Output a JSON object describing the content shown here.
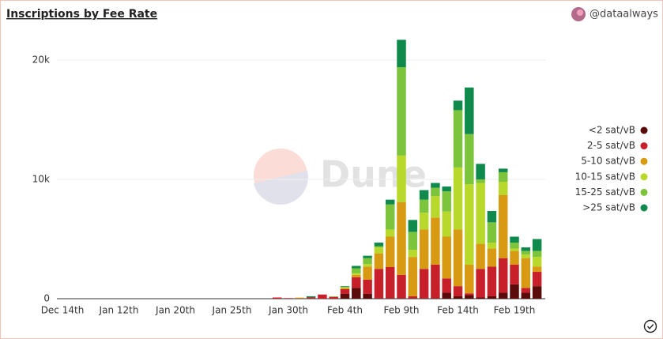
{
  "chart_data": {
    "type": "stacked_bar",
    "title": "Inscriptions by Fee Rate",
    "author": "@dataalways",
    "watermark": "Dune",
    "categories": [
      "Dec 14th",
      null,
      null,
      null,
      null,
      "Jan 12th",
      null,
      null,
      null,
      null,
      "Jan 20th",
      null,
      null,
      null,
      null,
      "Jan 25th",
      null,
      null,
      null,
      null,
      "Jan 30th",
      null,
      null,
      null,
      null,
      "Feb 4th",
      null,
      null,
      null,
      null,
      "Feb 9th",
      null,
      null,
      null,
      null,
      "Feb 14th",
      null,
      null,
      null,
      null,
      "Feb 19th",
      null,
      null
    ],
    "ylim": [
      0,
      22000
    ],
    "yticks": [
      0,
      {
        "value": 10000,
        "label": "10k"
      },
      {
        "value": 20000,
        "label": "20k"
      }
    ],
    "grid": true,
    "legend": "right",
    "series": [
      {
        "name": "<2 sat/vB",
        "color": "#5c0b0b",
        "values": [
          0,
          0,
          0,
          0,
          0,
          0,
          0,
          0,
          0,
          0,
          0,
          0,
          0,
          0,
          0,
          0,
          0,
          0,
          0,
          0,
          0,
          0,
          0,
          0,
          0,
          400,
          900,
          400,
          50,
          50,
          50,
          50,
          50,
          50,
          500,
          200,
          300,
          100,
          200,
          500,
          1200,
          500,
          1050
        ]
      },
      {
        "name": "2-5 sat/vB",
        "color": "#c8202a",
        "values": [
          0,
          0,
          0,
          0,
          0,
          0,
          0,
          0,
          0,
          0,
          0,
          0,
          0,
          0,
          0,
          0,
          0,
          0,
          0,
          100,
          50,
          50,
          100,
          350,
          150,
          400,
          900,
          1200,
          2450,
          2600,
          1950,
          150,
          2450,
          2800,
          1200,
          850,
          150,
          2400,
          2500,
          2900,
          1650,
          400,
          1200
        ]
      },
      {
        "name": "5-10 sat/vB",
        "color": "#d89a12",
        "values": [
          0,
          0,
          0,
          0,
          0,
          0,
          0,
          0,
          0,
          0,
          0,
          0,
          0,
          0,
          0,
          0,
          0,
          0,
          0,
          0,
          0,
          0,
          0,
          0,
          0,
          100,
          200,
          1100,
          1300,
          2550,
          6100,
          3300,
          3300,
          3950,
          3500,
          4750,
          2400,
          2100,
          1500,
          5300,
          1150,
          2500,
          450
        ]
      },
      {
        "name": "10-15 sat/vB",
        "color": "#b8d82c",
        "values": [
          0,
          0,
          0,
          0,
          0,
          0,
          0,
          0,
          0,
          0,
          0,
          0,
          0,
          0,
          0,
          0,
          0,
          0,
          0,
          0,
          0,
          50,
          0,
          0,
          0,
          50,
          150,
          200,
          500,
          600,
          3900,
          600,
          1400,
          1800,
          2100,
          5200,
          6750,
          5100,
          500,
          1100,
          200,
          300,
          800
        ]
      },
      {
        "name": "15-25 sat/vB",
        "color": "#7cc43c",
        "values": [
          0,
          0,
          0,
          0,
          0,
          0,
          0,
          0,
          0,
          0,
          0,
          0,
          0,
          0,
          0,
          0,
          0,
          0,
          0,
          0,
          0,
          0,
          0,
          0,
          50,
          50,
          400,
          500,
          100,
          2100,
          7400,
          1500,
          1100,
          700,
          1700,
          4800,
          4200,
          300,
          1700,
          800,
          500,
          300,
          500
        ]
      },
      {
        "name": ">25 sat/vB",
        "color": "#0f8a4c",
        "values": [
          0,
          0,
          0,
          0,
          0,
          0,
          0,
          0,
          0,
          0,
          0,
          0,
          0,
          0,
          0,
          0,
          0,
          0,
          0,
          0,
          0,
          0,
          100,
          0,
          0,
          50,
          200,
          200,
          300,
          400,
          2300,
          1000,
          800,
          400,
          400,
          800,
          3900,
          1300,
          950,
          300,
          500,
          300,
          1000
        ]
      }
    ]
  }
}
